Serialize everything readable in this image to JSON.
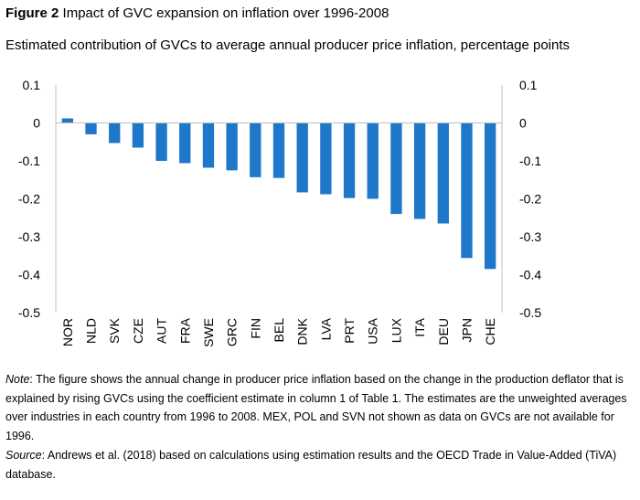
{
  "figure": {
    "label": "Figure 2",
    "title": "Impact of GVC expansion on inflation over 1996-2008",
    "subtitle": "Estimated contribution of GVCs to average annual producer price inflation, percentage points"
  },
  "chart_data": {
    "type": "bar",
    "title": "Estimated contribution of GVCs to average annual producer price inflation, percentage points",
    "categories": [
      "NOR",
      "NLD",
      "SVK",
      "CZE",
      "AUT",
      "FRA",
      "SWE",
      "GRC",
      "FIN",
      "BEL",
      "DNK",
      "LVA",
      "PRT",
      "USA",
      "LUX",
      "ITA",
      "DEU",
      "JPN",
      "CHE"
    ],
    "series": [
      {
        "values": [
          0.012,
          -0.03,
          -0.053,
          -0.065,
          -0.1,
          -0.106,
          -0.118,
          -0.125,
          -0.143,
          -0.145,
          -0.183,
          -0.188,
          -0.198,
          -0.2,
          -0.24,
          -0.253,
          -0.265,
          -0.356,
          -0.385
        ]
      }
    ],
    "ylim": [
      -0.5,
      0.1
    ],
    "yticks": [
      "0.1",
      "0",
      "-0.1",
      "-0.2",
      "-0.3",
      "-0.4",
      "-0.5"
    ],
    "ytick_values": [
      0.1,
      0,
      -0.1,
      -0.2,
      -0.3,
      -0.4,
      -0.5
    ],
    "secondary_y_axis": true,
    "grid": false,
    "bar_color": "#1f77c9"
  },
  "note": {
    "label": "Note",
    "text": ": The figure shows the annual change in producer price inflation based on the change in the production deflator that is explained by rising GVCs using the coefficient estimate in column 1 of Table 1. The estimates are the unweighted averages over industries in each country from 1996 to 2008. MEX, POL and SVN not shown as data on GVCs are not available for 1996."
  },
  "source": {
    "label": "Source",
    "text": ": Andrews et al. (2018) based on calculations using estimation results and the OECD Trade in Value-Added (TiVA) database."
  }
}
